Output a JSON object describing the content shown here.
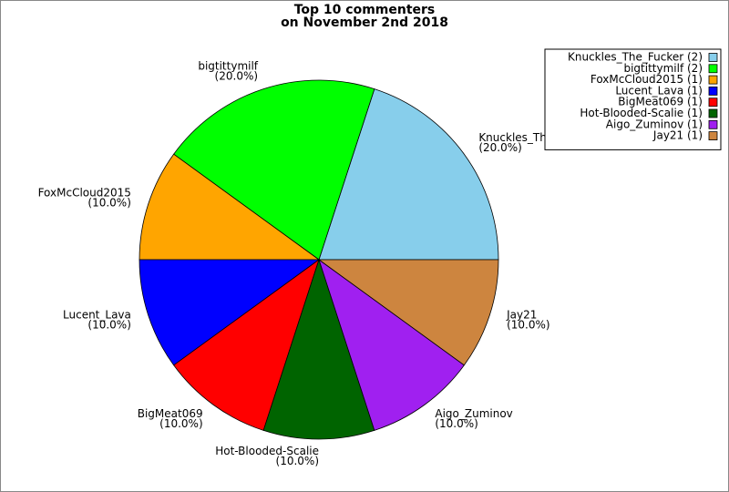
{
  "chart_data": {
    "type": "pie",
    "title": [
      "Top 10 commenters",
      "on November 2nd 2018"
    ],
    "categories": [
      "Knuckles_The_Fucker",
      "bigtittymilf",
      "FoxMcCloud2015",
      "Lucent_Lava",
      "BigMeat069",
      "Hot-Blooded-Scalie",
      "Aigo_Zuminov",
      "Jay21"
    ],
    "values": [
      20,
      20,
      10,
      10,
      10,
      10,
      10,
      10
    ],
    "value_labels": [
      "(20.0%)",
      "(20.0%)",
      "(10.0%)",
      "(10.0%)",
      "(10.0%)",
      "(10.0%)",
      "(10.0%)",
      "(10.0%)"
    ],
    "legend_labels": [
      "Knuckles_The_Fucker (2)",
      "bigtittymilf (2)",
      "FoxMcCloud2015 (1)",
      "Lucent_Lava (1)",
      "BigMeat069 (1)",
      "Hot-Blooded-Scalie (1)",
      "Aigo_Zuminov (1)",
      "Jay21 (1)"
    ],
    "colors": [
      "#87ceeb",
      "#00ff00",
      "#ffa500",
      "#0000ff",
      "#ff0000",
      "#006400",
      "#a020f0",
      "#cd853f"
    ],
    "legend": "upper right"
  }
}
